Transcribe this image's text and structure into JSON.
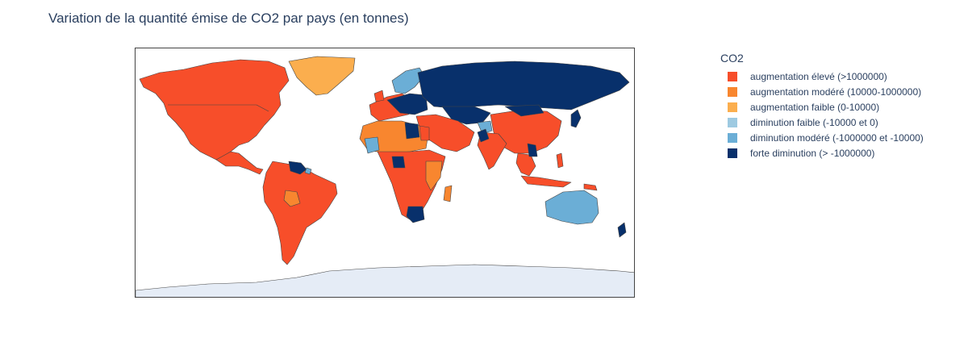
{
  "title": "Variation de la quantité émise de CO2 par pays (en tonnes)",
  "legend": {
    "title": "CO2",
    "items": [
      {
        "label": "augmentation élevé (>1000000)",
        "color": "#f74e2a"
      },
      {
        "label": "augmentation modéré (10000-1000000)",
        "color": "#f8862f"
      },
      {
        "label": "augmentation faible (0-10000)",
        "color": "#fbae4e"
      },
      {
        "label": "diminution faible (-10000 et 0)",
        "color": "#9ecae1"
      },
      {
        "label": "diminution modéré (-1000000 et -10000)",
        "color": "#6baed6"
      },
      {
        "label": "forte diminution (> -1000000)",
        "color": "#08306b"
      }
    ]
  },
  "colors": {
    "land_no_data": "#e5ecf6",
    "border": "#444444",
    "ocean": "#ffffff"
  }
}
